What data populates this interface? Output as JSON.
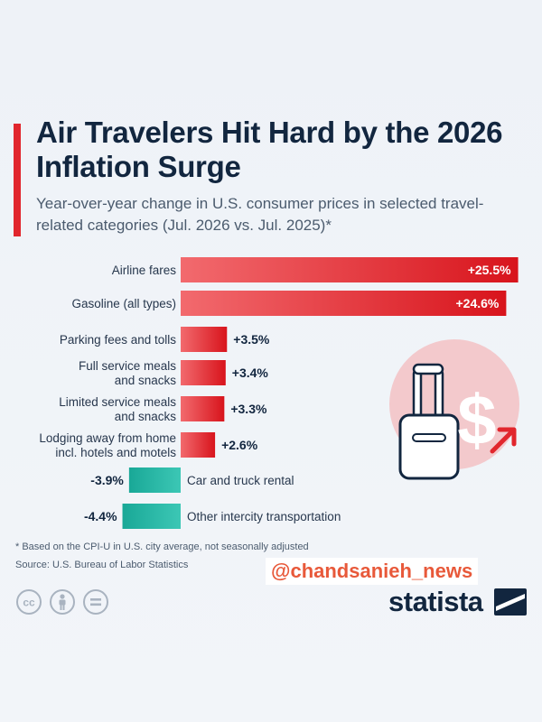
{
  "header": {
    "title": "Air Travelers Hit Hard by the 2026 Inflation Surge",
    "subtitle": "Year-over-year change in U.S. consumer prices in selected travel-related categories (Jul. 2026 vs. Jul. 2025)*"
  },
  "chart_data": {
    "type": "bar",
    "orientation": "horizontal",
    "unit": "%",
    "categories": [
      "Airline fares",
      "Gasoline (all types)",
      "Parking fees and tolls",
      "Full service meals and snacks",
      "Limited service meals and snacks",
      "Lodging away from home incl. hotels and motels",
      "Car and truck rental",
      "Other intercity transportation"
    ],
    "values": [
      25.5,
      24.6,
      3.5,
      3.4,
      3.3,
      2.6,
      -3.9,
      -4.4
    ],
    "value_labels": [
      "+25.5%",
      "+24.6%",
      "+3.5%",
      "+3.4%",
      "+3.3%",
      "+2.6%",
      "-3.9%",
      "-4.4%"
    ],
    "colors": {
      "positive": "#e1262d",
      "negative": "#1fb3a3"
    }
  },
  "footer": {
    "note": "* Based on the CPI-U in U.S. city average, not seasonally adjusted",
    "source": "Source: U.S. Bureau of Labor Statistics",
    "watermark": "@chandsanieh_news",
    "brand": "statista"
  },
  "icons": [
    "suitcase-icon",
    "dollar-icon",
    "arrow-up-right-icon",
    "cc-icon",
    "person-icon",
    "equals-icon",
    "statista-logo-icon"
  ]
}
